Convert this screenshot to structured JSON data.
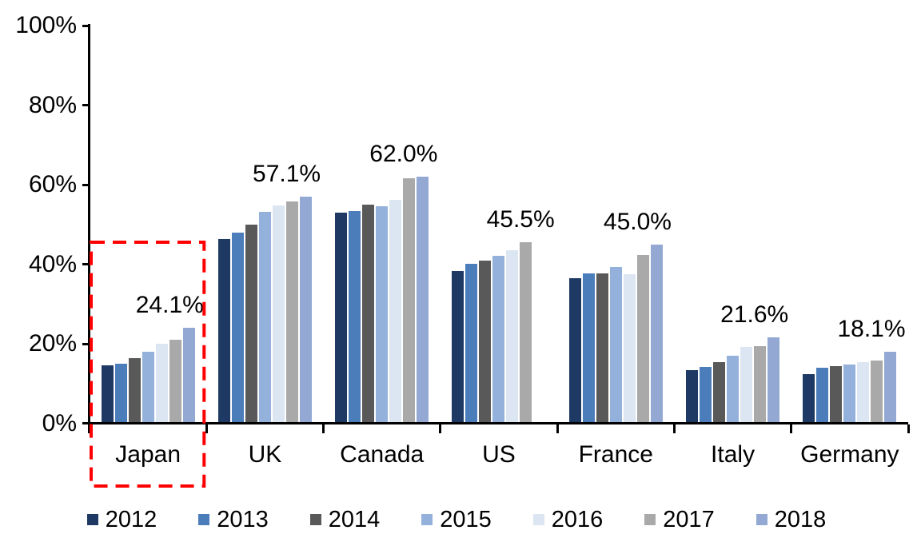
{
  "chart_data": {
    "type": "bar",
    "subtype": "grouped-vertical",
    "title": "",
    "xlabel": "",
    "ylabel": "",
    "categories": [
      "Japan",
      "UK",
      "Canada",
      "US",
      "France",
      "Italy",
      "Germany"
    ],
    "series": [
      {
        "name": "2012",
        "color": "#1E3A64",
        "values": [
          14.7,
          46.3,
          53.1,
          38.3,
          36.6,
          13.4,
          12.5
        ]
      },
      {
        "name": "2013",
        "color": "#4C7DBB",
        "values": [
          15.0,
          48.0,
          53.5,
          40.2,
          37.8,
          14.2,
          14.0
        ]
      },
      {
        "name": "2014",
        "color": "#595959",
        "values": [
          16.5,
          50.0,
          55.0,
          41.0,
          37.8,
          15.5,
          14.5
        ]
      },
      {
        "name": "2015",
        "color": "#93B1DB",
        "values": [
          18.0,
          53.3,
          54.6,
          42.1,
          39.4,
          17.0,
          14.9
        ]
      },
      {
        "name": "2016",
        "color": "#DCE6F2",
        "values": [
          20.0,
          54.8,
          56.2,
          43.6,
          37.6,
          19.2,
          15.4
        ]
      },
      {
        "name": "2017",
        "color": "#A9A9A9",
        "values": [
          21.1,
          55.8,
          61.6,
          45.5,
          42.4,
          19.4,
          15.9
        ]
      },
      {
        "name": "2018",
        "color": "#93A9D4",
        "values": [
          24.1,
          57.1,
          62.0,
          null,
          45.0,
          21.6,
          18.1
        ]
      }
    ],
    "annotations": [
      {
        "category": "Japan",
        "series": "2018",
        "label": "24.1%"
      },
      {
        "category": "UK",
        "series": "2018",
        "label": "57.1%"
      },
      {
        "category": "Canada",
        "series": "2018",
        "label": "62.0%"
      },
      {
        "category": "US",
        "series": "2017",
        "label": "45.5%"
      },
      {
        "category": "France",
        "series": "2018",
        "label": "45.0%"
      },
      {
        "category": "Italy",
        "series": "2018",
        "label": "21.6%"
      },
      {
        "category": "Germany",
        "series": "2018",
        "label": "18.1%"
      }
    ],
    "y_axis": {
      "min": 0,
      "max": 100,
      "step": 20,
      "tick_labels": [
        "0%",
        "20%",
        "40%",
        "60%",
        "80%",
        "100%"
      ],
      "unit": "%"
    },
    "legend": {
      "position": "bottom",
      "items": [
        "2012",
        "2013",
        "2014",
        "2015",
        "2016",
        "2017",
        "2018"
      ]
    },
    "highlight": {
      "category": "Japan",
      "style": "dashed-box",
      "color": "#FF0000"
    },
    "grid": false,
    "axis_color": "#000000"
  }
}
